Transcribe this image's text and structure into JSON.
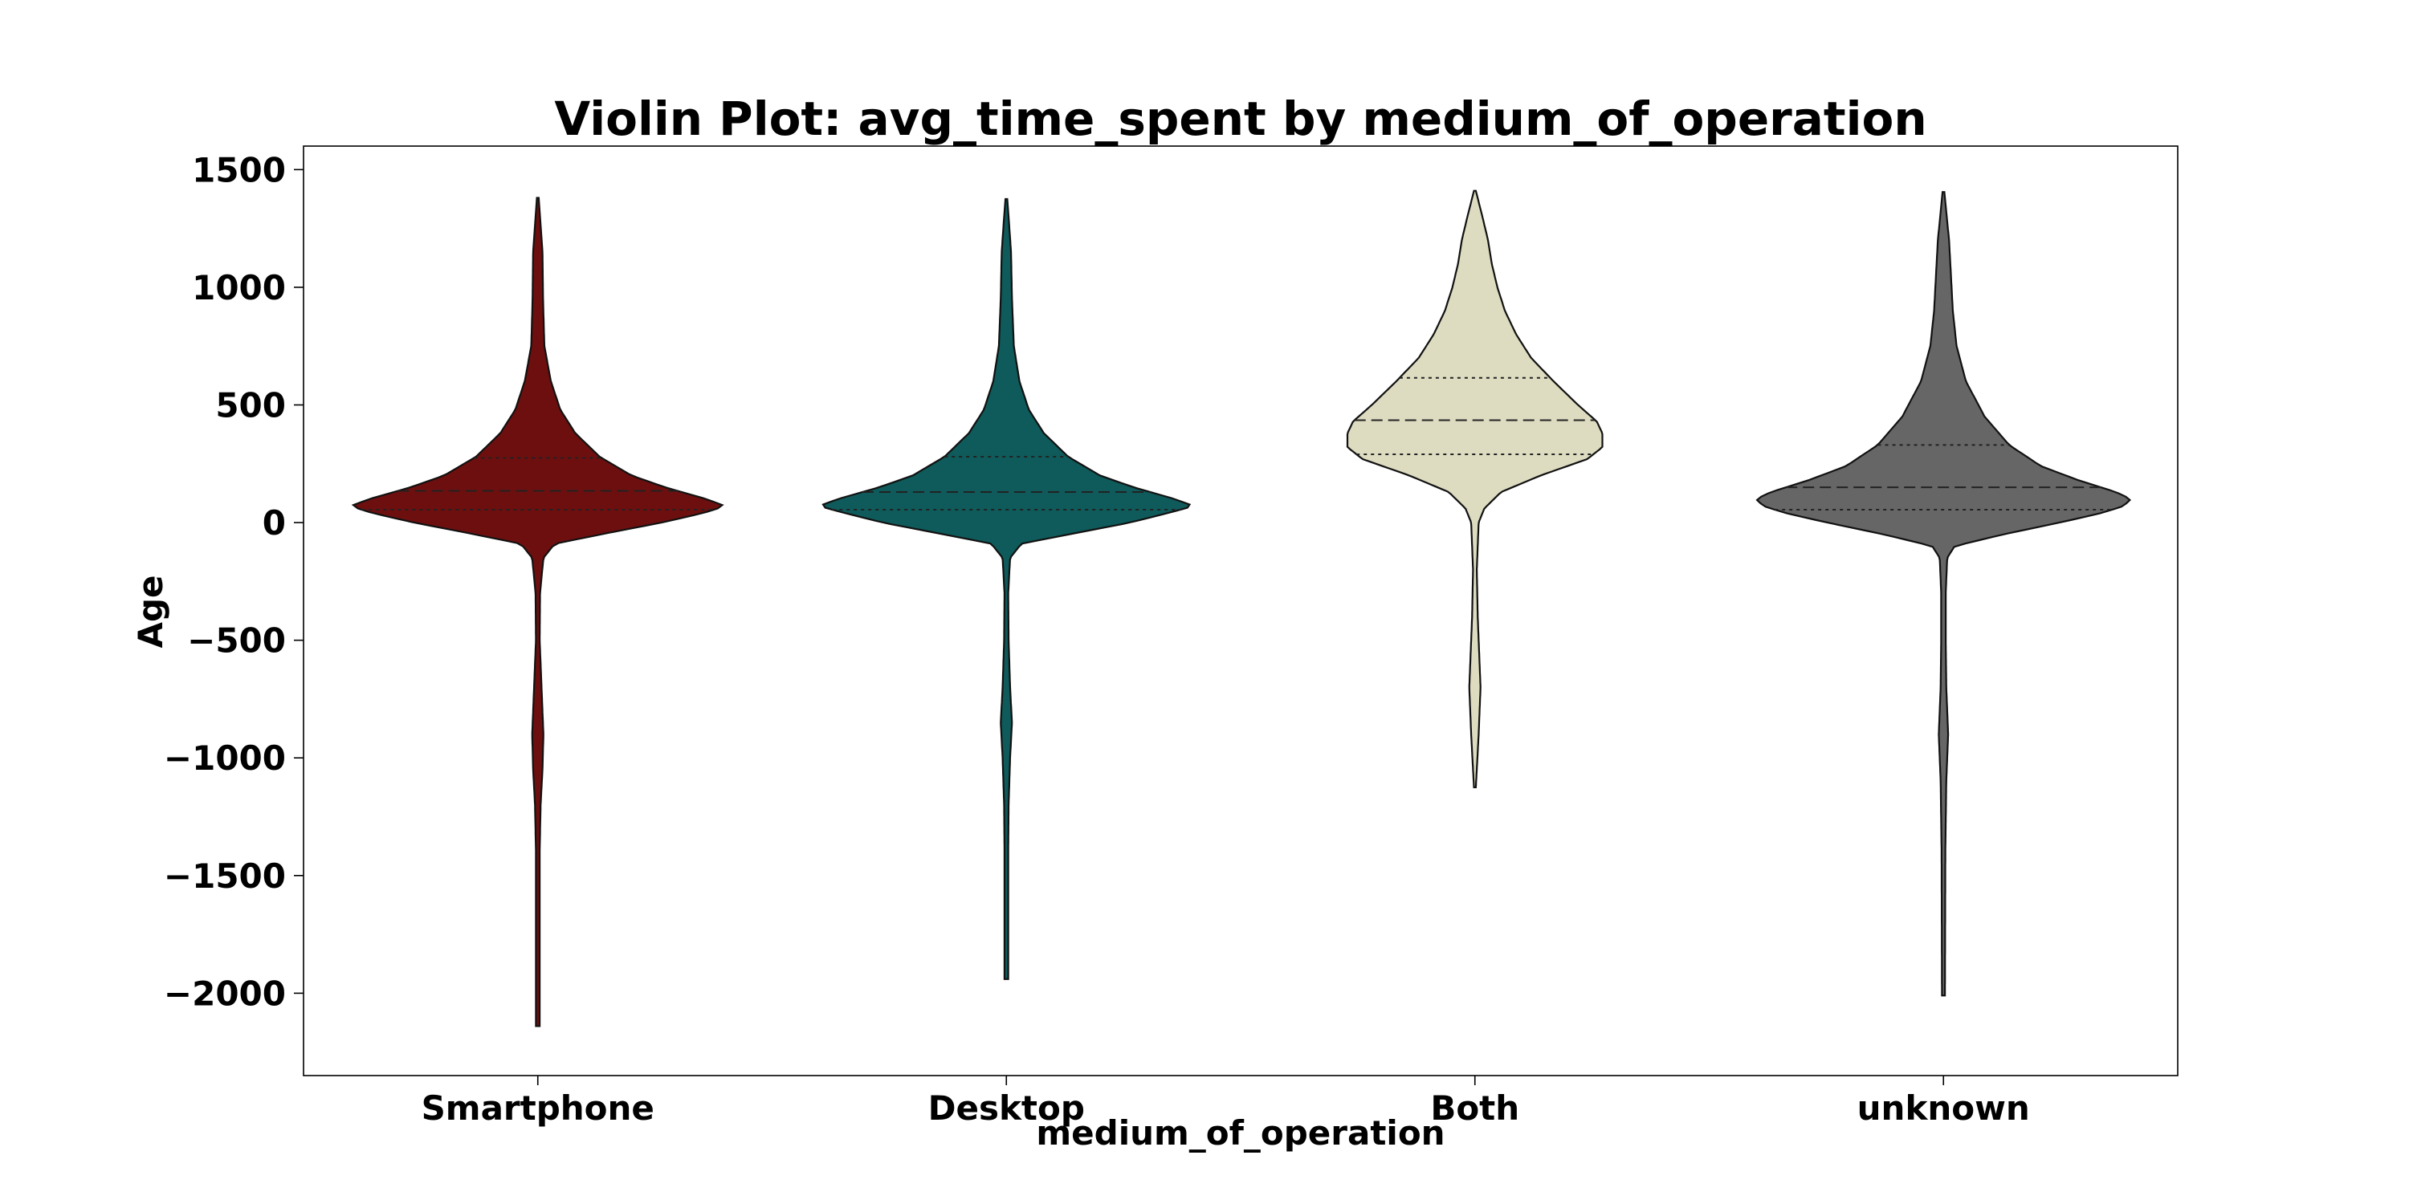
{
  "chart_data": {
    "type": "violin",
    "title": "Violin Plot: avg_time_spent by medium_of_operation",
    "xlabel": "medium_of_operation",
    "ylabel": "Age",
    "ylim": [
      -2350,
      1600
    ],
    "yticks": [
      1500,
      1000,
      500,
      0,
      -500,
      -1000,
      -1500,
      -2000
    ],
    "ytick_labels": [
      "1500",
      "1000",
      "500",
      "0",
      "−500",
      "−1000",
      "−1500",
      "−2000"
    ],
    "grid": false,
    "legend": "none",
    "categories": [
      "Smartphone",
      "Desktop",
      "Both",
      "unknown"
    ],
    "violins": [
      {
        "category": "Smartphone",
        "color": "#6e0f0f",
        "min": -2140,
        "max": 1380,
        "q1": 55,
        "median": 135,
        "q3": 275,
        "density": [
          [
            -2140,
            0.01
          ],
          [
            -1400,
            0.01
          ],
          [
            -1200,
            0.015
          ],
          [
            -1050,
            0.025
          ],
          [
            -900,
            0.03
          ],
          [
            -700,
            0.02
          ],
          [
            -500,
            0.01
          ],
          [
            -300,
            0.012
          ],
          [
            -150,
            0.03
          ],
          [
            -90,
            0.09
          ],
          [
            -40,
            0.4
          ],
          [
            0,
            0.66
          ],
          [
            40,
            0.88
          ],
          [
            70,
            1.0
          ],
          [
            100,
            0.9
          ],
          [
            150,
            0.68
          ],
          [
            200,
            0.5
          ],
          [
            280,
            0.33
          ],
          [
            380,
            0.2
          ],
          [
            480,
            0.12
          ],
          [
            600,
            0.07
          ],
          [
            750,
            0.035
          ],
          [
            950,
            0.028
          ],
          [
            1150,
            0.025
          ],
          [
            1300,
            0.012
          ],
          [
            1380,
            0.005
          ]
        ]
      },
      {
        "category": "Desktop",
        "color": "#0f5a5a",
        "min": -1940,
        "max": 1375,
        "q1": 55,
        "median": 130,
        "q3": 280,
        "density": [
          [
            -1940,
            0.01
          ],
          [
            -1400,
            0.01
          ],
          [
            -1200,
            0.012
          ],
          [
            -1000,
            0.02
          ],
          [
            -850,
            0.03
          ],
          [
            -700,
            0.02
          ],
          [
            -500,
            0.012
          ],
          [
            -300,
            0.01
          ],
          [
            -150,
            0.02
          ],
          [
            -90,
            0.08
          ],
          [
            -40,
            0.4
          ],
          [
            0,
            0.66
          ],
          [
            40,
            0.86
          ],
          [
            70,
            1.0
          ],
          [
            100,
            0.9
          ],
          [
            150,
            0.68
          ],
          [
            200,
            0.5
          ],
          [
            280,
            0.33
          ],
          [
            380,
            0.2
          ],
          [
            480,
            0.12
          ],
          [
            600,
            0.07
          ],
          [
            750,
            0.04
          ],
          [
            950,
            0.03
          ],
          [
            1150,
            0.025
          ],
          [
            1300,
            0.012
          ],
          [
            1375,
            0.005
          ]
        ]
      },
      {
        "category": "Both",
        "color": "#dddbc0",
        "min": -1125,
        "max": 1410,
        "q1": 290,
        "median": 435,
        "q3": 615,
        "density": [
          [
            -1125,
            0.005
          ],
          [
            -900,
            0.02
          ],
          [
            -700,
            0.03
          ],
          [
            -600,
            0.025
          ],
          [
            -400,
            0.015
          ],
          [
            -200,
            0.01
          ],
          [
            0,
            0.02
          ],
          [
            60,
            0.05
          ],
          [
            130,
            0.14
          ],
          [
            200,
            0.35
          ],
          [
            270,
            0.6
          ],
          [
            320,
            0.68
          ],
          [
            380,
            0.68
          ],
          [
            430,
            0.65
          ],
          [
            500,
            0.55
          ],
          [
            600,
            0.42
          ],
          [
            700,
            0.3
          ],
          [
            800,
            0.22
          ],
          [
            900,
            0.16
          ],
          [
            1000,
            0.12
          ],
          [
            1100,
            0.09
          ],
          [
            1200,
            0.07
          ],
          [
            1300,
            0.04
          ],
          [
            1410,
            0.005
          ]
        ]
      },
      {
        "category": "unknown",
        "color": "#666666",
        "min": -2010,
        "max": 1405,
        "q1": 55,
        "median": 150,
        "q3": 330,
        "density": [
          [
            -2010,
            0.008
          ],
          [
            -1400,
            0.01
          ],
          [
            -1100,
            0.015
          ],
          [
            -900,
            0.025
          ],
          [
            -700,
            0.015
          ],
          [
            -500,
            0.012
          ],
          [
            -300,
            0.012
          ],
          [
            -150,
            0.02
          ],
          [
            -100,
            0.06
          ],
          [
            -50,
            0.32
          ],
          [
            0,
            0.62
          ],
          [
            40,
            0.84
          ],
          [
            70,
            0.96
          ],
          [
            100,
            1.0
          ],
          [
            130,
            0.92
          ],
          [
            180,
            0.72
          ],
          [
            240,
            0.52
          ],
          [
            330,
            0.35
          ],
          [
            450,
            0.22
          ],
          [
            600,
            0.12
          ],
          [
            750,
            0.07
          ],
          [
            900,
            0.05
          ],
          [
            1050,
            0.04
          ],
          [
            1200,
            0.03
          ],
          [
            1320,
            0.015
          ],
          [
            1405,
            0.005
          ]
        ]
      }
    ]
  }
}
